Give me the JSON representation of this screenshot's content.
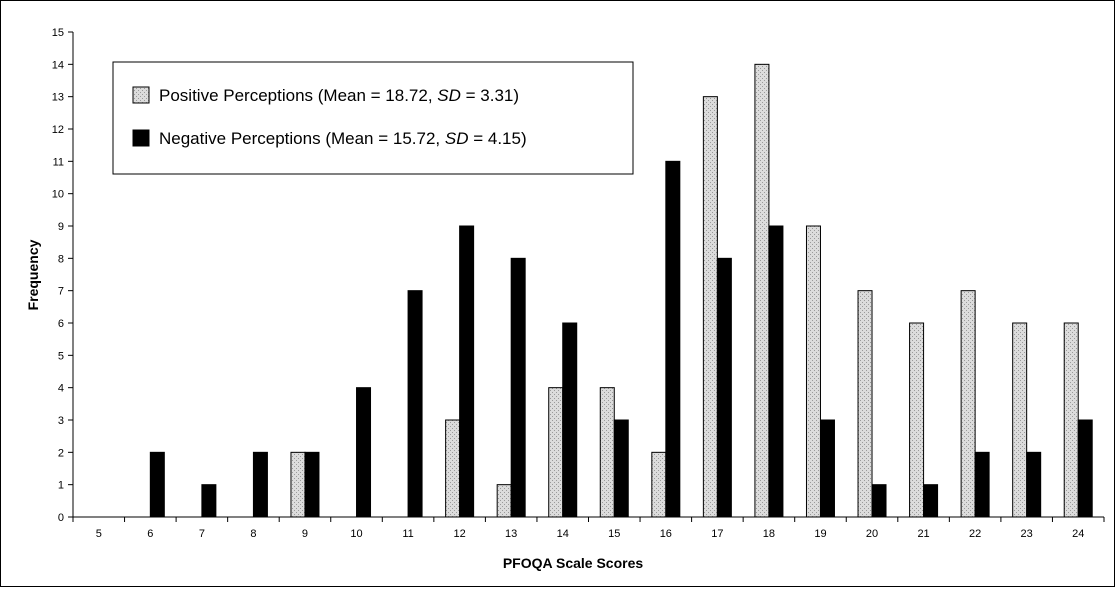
{
  "chart_data": {
    "type": "bar",
    "title": "",
    "xlabel": "PFOQA Scale Scores",
    "ylabel": "Frequency",
    "ylim": [
      0,
      15
    ],
    "yticks": [
      "0",
      "1",
      "2",
      "3",
      "4",
      "5",
      "6",
      "7",
      "8",
      "9",
      "10",
      "11",
      "12",
      "13",
      "14",
      "15"
    ],
    "categories": [
      "5",
      "6",
      "7",
      "8",
      "9",
      "10",
      "11",
      "12",
      "13",
      "14",
      "15",
      "16",
      "17",
      "18",
      "19",
      "20",
      "21",
      "22",
      "23",
      "24"
    ],
    "series": [
      {
        "name": "Positive Perceptions (Mean = 18.72, SD = 3.31)",
        "legend": {
          "prefix": "Positive Perceptions (Mean = 18.72, ",
          "sd_label": "SD",
          "suffix": " = 3.31)"
        },
        "fill": "#dcdcdc",
        "pattern": "dotted",
        "values": [
          0,
          0,
          0,
          0,
          2,
          0,
          0,
          3,
          1,
          4,
          4,
          2,
          13,
          14,
          9,
          7,
          6,
          7,
          6,
          6
        ]
      },
      {
        "name": "Negative Perceptions (Mean = 15.72, SD = 4.15)",
        "legend": {
          "prefix": "Negative Perceptions (Mean = 15.72, ",
          "sd_label": "SD",
          "suffix": " = 4.15)"
        },
        "fill": "#000000",
        "pattern": "solid",
        "values": [
          0,
          2,
          1,
          2,
          2,
          4,
          7,
          9,
          8,
          6,
          3,
          11,
          8,
          9,
          3,
          1,
          1,
          2,
          2,
          3
        ]
      }
    ],
    "grid": false,
    "legend_position": "top-left"
  }
}
